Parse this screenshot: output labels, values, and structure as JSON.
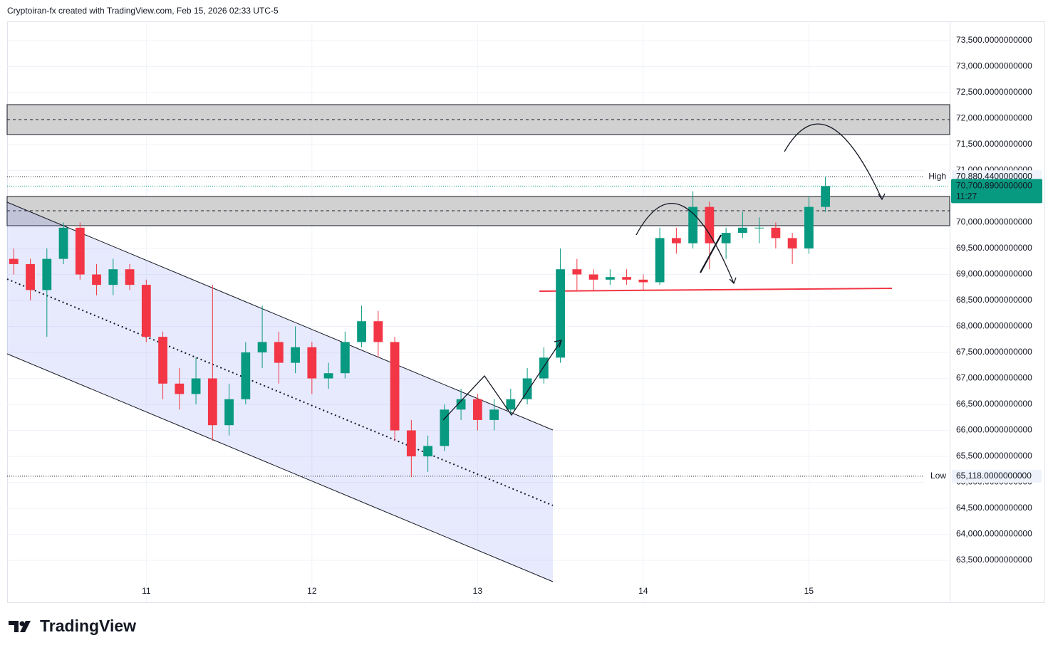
{
  "header": {
    "attribution": "Cryptoiran-fx created with TradingView.com, Feb 15, 2026 02:33 UTC-5"
  },
  "footer": {
    "brand": "TradingView"
  },
  "chart_data": {
    "type": "candlestick",
    "x": [
      10.2,
      10.3,
      10.4,
      10.5,
      10.6,
      10.7,
      10.8,
      10.9,
      11.0,
      11.1,
      11.2,
      11.3,
      11.4,
      11.5,
      11.6,
      11.7,
      11.8,
      11.9,
      12.0,
      12.1,
      12.2,
      12.3,
      12.4,
      12.5,
      12.6,
      12.7,
      12.8,
      12.9,
      13.0,
      13.1,
      13.2,
      13.3,
      13.4,
      13.5,
      13.6,
      13.7,
      13.8,
      13.9,
      14.0,
      14.1,
      14.2,
      14.3,
      14.4,
      14.5,
      14.6,
      14.7,
      14.8,
      14.9,
      15.0,
      15.1
    ],
    "open": [
      69300,
      69200,
      68700,
      69300,
      69900,
      69000,
      68800,
      69100,
      68800,
      67800,
      66900,
      66700,
      67000,
      66100,
      66600,
      67500,
      67700,
      67300,
      67600,
      67000,
      67100,
      67700,
      68100,
      67700,
      66000,
      65500,
      65700,
      66400,
      66600,
      66200,
      66400,
      66600,
      67000,
      67400,
      69100,
      69000,
      68900,
      68950,
      68900,
      68850,
      69700,
      69600,
      70300,
      69600,
      69800,
      69900,
      69900,
      69700,
      69500,
      70300
    ],
    "high": [
      69500,
      69300,
      69500,
      70000,
      70000,
      69200,
      69300,
      69200,
      68900,
      67900,
      67200,
      67400,
      68800,
      66900,
      67700,
      68400,
      67900,
      68000,
      67700,
      67300,
      67900,
      68400,
      68300,
      67800,
      66200,
      65900,
      66500,
      66800,
      66700,
      66600,
      66800,
      67200,
      67600,
      69500,
      69300,
      69100,
      69100,
      69100,
      69000,
      69900,
      69900,
      70600,
      70400,
      69900,
      70200,
      70100,
      70000,
      69800,
      70500,
      70880.44
    ],
    "low": [
      69000,
      68500,
      67800,
      69200,
      68900,
      68600,
      68600,
      68700,
      67700,
      66600,
      66400,
      66500,
      65800,
      65900,
      66500,
      67200,
      66900,
      67100,
      66700,
      66800,
      67000,
      67600,
      67400,
      65800,
      65100,
      65200,
      65600,
      66200,
      66000,
      66000,
      66300,
      66500,
      66900,
      67300,
      68700,
      68700,
      68800,
      68800,
      68700,
      68800,
      69400,
      69500,
      69100,
      69300,
      69700,
      69600,
      69500,
      69200,
      69400,
      70200
    ],
    "close": [
      69200,
      68700,
      69300,
      69900,
      69000,
      68800,
      69100,
      68800,
      67800,
      66900,
      66700,
      67000,
      66100,
      66600,
      67500,
      67700,
      67300,
      67600,
      67000,
      67100,
      67700,
      68100,
      67700,
      66000,
      65500,
      65700,
      66400,
      66600,
      66200,
      66400,
      66600,
      67000,
      67400,
      69100,
      69000,
      68900,
      68950,
      68900,
      68850,
      69700,
      69600,
      70300,
      69600,
      69800,
      69900,
      69900,
      69700,
      69500,
      70300,
      70700.89
    ],
    "up_color": "#089981",
    "down_color": "#f23645",
    "xlim": [
      10.16,
      15.85
    ],
    "xticks": [
      11,
      12,
      13,
      14,
      15
    ],
    "ylim": [
      62692,
      73870
    ],
    "yticks": [
      {
        "value": 63500,
        "label": "63,500.0000000000"
      },
      {
        "value": 64000,
        "label": "64,000.0000000000"
      },
      {
        "value": 64500,
        "label": "64,500.0000000000"
      },
      {
        "value": 65000,
        "label": "65,000.0000000000"
      },
      {
        "value": 65500,
        "label": "65,500.0000000000"
      },
      {
        "value": 66000,
        "label": "66,000.0000000000"
      },
      {
        "value": 66500,
        "label": "66,500.0000000000"
      },
      {
        "value": 67000,
        "label": "67,000.0000000000"
      },
      {
        "value": 67500,
        "label": "67,500.0000000000"
      },
      {
        "value": 68000,
        "label": "68,000.0000000000"
      },
      {
        "value": 68500,
        "label": "68,500.0000000000"
      },
      {
        "value": 69000,
        "label": "69,000.0000000000"
      },
      {
        "value": 69500,
        "label": "69,500.0000000000"
      },
      {
        "value": 70000,
        "label": "70,000.0000000000"
      },
      {
        "value": 70500,
        "label": "70,500.0000000000"
      },
      {
        "value": 71000,
        "label": "71,000.0000000000"
      },
      {
        "value": 71500,
        "label": "71,500.0000000000"
      },
      {
        "value": 72000,
        "label": "72,000.0000000000"
      },
      {
        "value": 72500,
        "label": "72,500.0000000000"
      },
      {
        "value": 73000,
        "label": "73,000.0000000000"
      },
      {
        "value": 73500,
        "label": "73,500.0000000000"
      }
    ],
    "grid": true,
    "high_marker": {
      "label": "High",
      "value": 70880.44,
      "value_label": "70,880.4400000000"
    },
    "last_price": {
      "value": 70700.89,
      "value_label": "70,700.8900000000",
      "countdown": "11:27"
    },
    "low_marker": {
      "label": "Low",
      "value": 65118,
      "value_label": "65,118.0000000000"
    }
  }
}
